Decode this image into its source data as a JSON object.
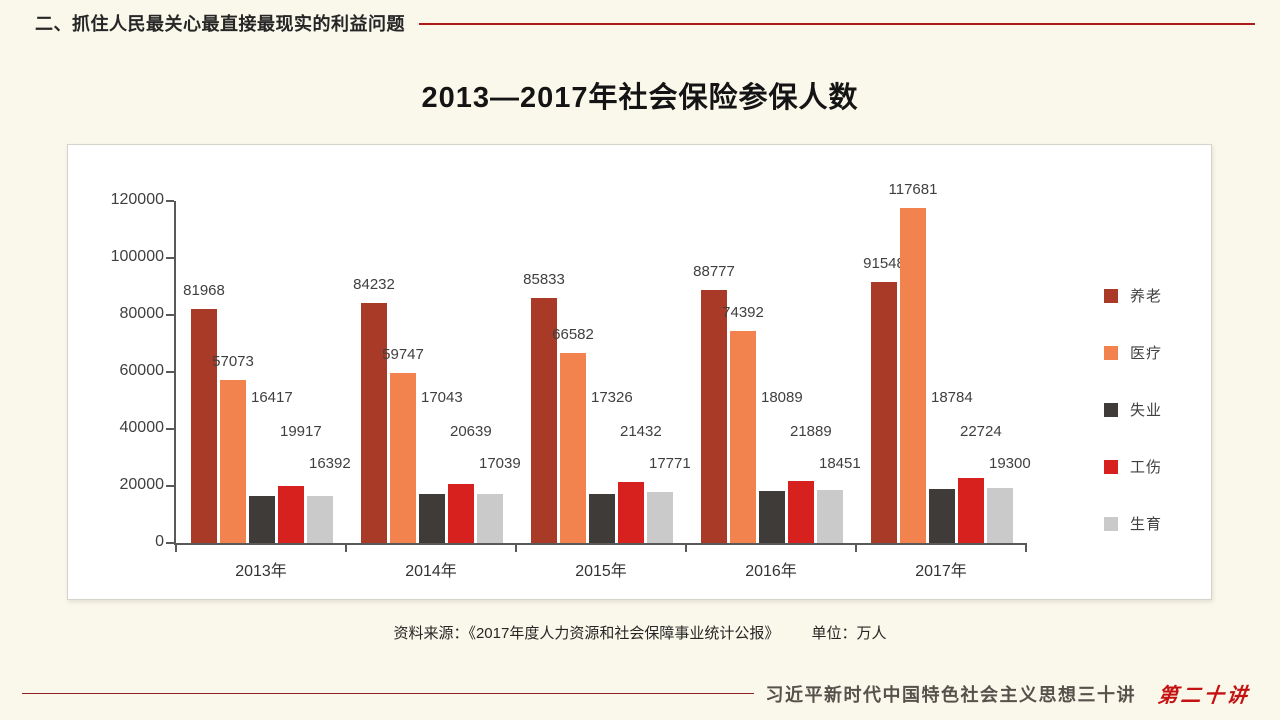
{
  "header": {
    "section_label": "二、抓住人民最关心最直接最现实的利益问题"
  },
  "title": "2013—2017年社会保险参保人数",
  "chart_data": {
    "type": "bar",
    "title": "2013—2017年社会保险参保人数",
    "categories": [
      "2013年",
      "2014年",
      "2015年",
      "2016年",
      "2017年"
    ],
    "series": [
      {
        "name": "养老",
        "color": "#a93a28",
        "values": [
          81968,
          84232,
          85833,
          88777,
          91548
        ]
      },
      {
        "name": "医疗",
        "color": "#f2824e",
        "values": [
          57073,
          59747,
          66582,
          74392,
          117681
        ]
      },
      {
        "name": "失业",
        "color": "#3f3b38",
        "values": [
          16417,
          17043,
          17326,
          18089,
          18784
        ]
      },
      {
        "name": "工伤",
        "color": "#d6211e",
        "values": [
          19917,
          20639,
          21432,
          21889,
          22724
        ]
      },
      {
        "name": "生育",
        "color": "#c9cac9",
        "values": [
          16392,
          17039,
          17771,
          18451,
          19300
        ]
      }
    ],
    "ylim": [
      0,
      120000
    ],
    "ytick_step": 20000,
    "ytick_labels": [
      "120000",
      "100000",
      "80000",
      "60000",
      "40000",
      "20000",
      "0"
    ],
    "grid": false,
    "legend_position": "right",
    "unit": "万人"
  },
  "source_note": {
    "source": "资料来源：《2017年度人力资源和社会保障事业统计公报》",
    "unit_label": "单位：万人"
  },
  "footer": {
    "book_title": "习近平新时代中国特色社会主义思想三十讲",
    "lecture_number": "第二十讲"
  }
}
